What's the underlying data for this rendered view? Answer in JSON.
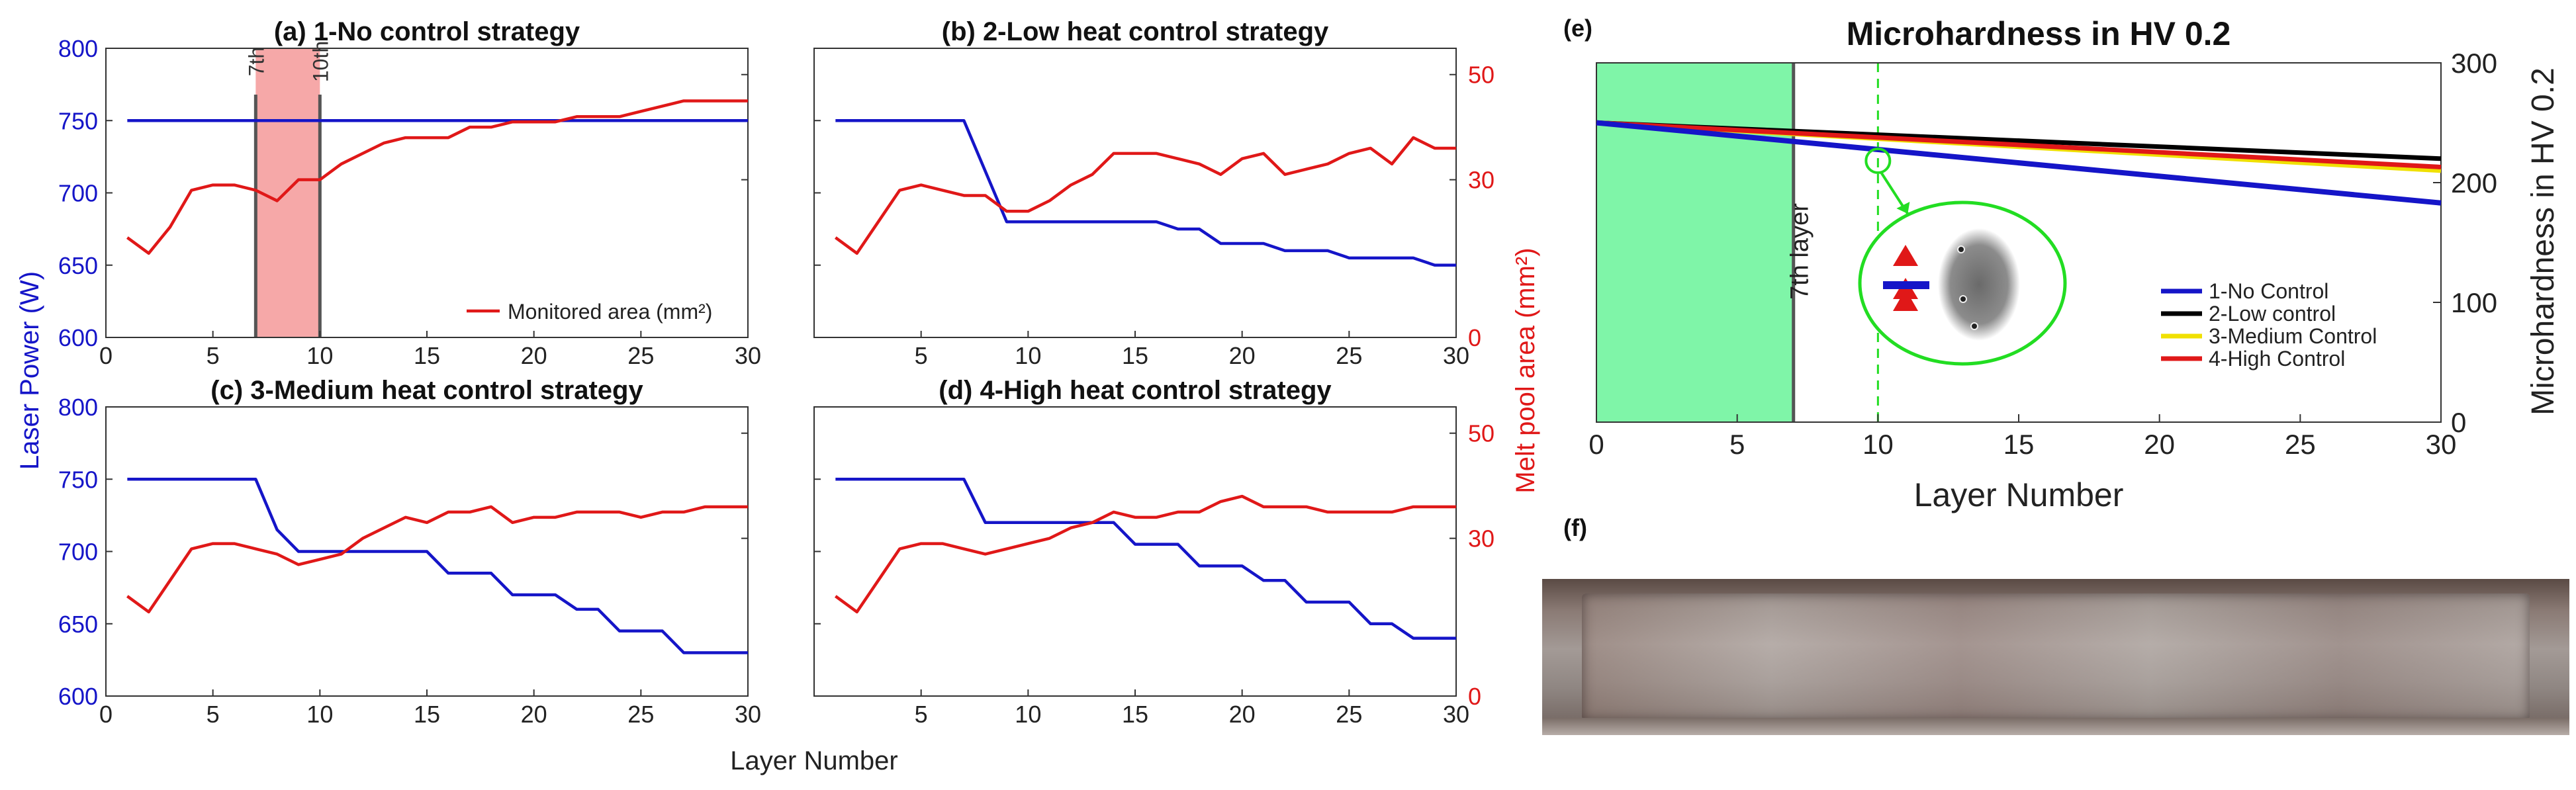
{
  "colors": {
    "power": "#1515c8",
    "area": "#e01818",
    "low": "#000000",
    "medium": "#f0e000",
    "zone": "#7ff5a8",
    "circle": "#22dd22"
  },
  "left_axes": {
    "ylabel_left": "Laser Power (W)",
    "ylabel_right": "Melt pool area (mm²)",
    "xlabel": "Layer Number",
    "y_ticks": [
      "600",
      "650",
      "700",
      "750",
      "800"
    ],
    "y2_ticks": [
      "0",
      "30",
      "50"
    ],
    "x_ticks": [
      "0",
      "5",
      "10",
      "15",
      "20",
      "25",
      "30"
    ]
  },
  "chart_data": [
    {
      "type": "line",
      "panel": "a",
      "title": "(a) 1-No control strategy",
      "xlim": [
        0,
        30
      ],
      "ylim": [
        600,
        800
      ],
      "y2lim": [
        0,
        55
      ],
      "legend": "Monitored area (mm²)",
      "annotations": [
        "7th",
        "10th"
      ],
      "highlight_x": [
        7,
        10
      ],
      "series": [
        {
          "axis": "left",
          "x": [
            1,
            30
          ],
          "values": [
            750,
            750
          ]
        },
        {
          "axis": "right",
          "x": [
            1,
            2,
            3,
            4,
            5,
            6,
            7,
            8,
            9,
            10,
            11,
            12,
            13,
            14,
            15,
            16,
            17,
            18,
            19,
            20,
            21,
            22,
            23,
            24,
            25,
            26,
            27,
            28,
            29,
            30
          ],
          "values": [
            19,
            16,
            21,
            28,
            29,
            29,
            28,
            26,
            30,
            30,
            33,
            35,
            37,
            38,
            38,
            38,
            40,
            40,
            41,
            41,
            41,
            42,
            42,
            42,
            43,
            44,
            45,
            45,
            45,
            45
          ]
        }
      ]
    },
    {
      "type": "line",
      "panel": "b",
      "title": "(b) 2-Low heat control strategy",
      "xlim": [
        0,
        30
      ],
      "ylim": [
        600,
        800
      ],
      "y2lim": [
        0,
        55
      ],
      "series": [
        {
          "axis": "left",
          "x": [
            1,
            7,
            8,
            9,
            10,
            11,
            12,
            13,
            14,
            15,
            16,
            17,
            18,
            19,
            20,
            21,
            22,
            23,
            24,
            25,
            26,
            27,
            28,
            29,
            30
          ],
          "values": [
            750,
            750,
            715,
            680,
            680,
            680,
            680,
            680,
            680,
            680,
            680,
            675,
            675,
            665,
            665,
            665,
            660,
            660,
            660,
            655,
            655,
            655,
            655,
            650,
            650
          ]
        },
        {
          "axis": "right",
          "x": [
            1,
            2,
            3,
            4,
            5,
            6,
            7,
            8,
            9,
            10,
            11,
            12,
            13,
            14,
            15,
            16,
            17,
            18,
            19,
            20,
            21,
            22,
            23,
            24,
            25,
            26,
            27,
            28,
            29,
            30
          ],
          "values": [
            19,
            16,
            22,
            28,
            29,
            28,
            27,
            27,
            24,
            24,
            26,
            29,
            31,
            35,
            35,
            35,
            34,
            33,
            31,
            34,
            35,
            31,
            32,
            33,
            35,
            36,
            33,
            38,
            36,
            36
          ]
        }
      ]
    },
    {
      "type": "line",
      "panel": "c",
      "title": "(c) 3-Medium heat control strategy",
      "xlim": [
        0,
        30
      ],
      "ylim": [
        600,
        800
      ],
      "y2lim": [
        0,
        55
      ],
      "series": [
        {
          "axis": "left",
          "x": [
            1,
            7,
            8,
            9,
            10,
            11,
            12,
            13,
            14,
            15,
            16,
            17,
            18,
            19,
            20,
            21,
            22,
            23,
            24,
            25,
            26,
            27,
            28,
            29,
            30
          ],
          "values": [
            750,
            750,
            715,
            700,
            700,
            700,
            700,
            700,
            700,
            700,
            685,
            685,
            685,
            670,
            670,
            670,
            660,
            660,
            645,
            645,
            645,
            630,
            630,
            630,
            630
          ]
        },
        {
          "axis": "right",
          "x": [
            1,
            2,
            3,
            4,
            5,
            6,
            7,
            8,
            9,
            10,
            11,
            12,
            13,
            14,
            15,
            16,
            17,
            18,
            19,
            20,
            21,
            22,
            23,
            24,
            25,
            26,
            27,
            28,
            29,
            30
          ],
          "values": [
            19,
            16,
            22,
            28,
            29,
            29,
            28,
            27,
            25,
            26,
            27,
            30,
            32,
            34,
            33,
            35,
            35,
            36,
            33,
            34,
            34,
            35,
            35,
            35,
            34,
            35,
            35,
            36,
            36,
            36
          ]
        }
      ]
    },
    {
      "type": "line",
      "panel": "d",
      "title": "(d) 4-High heat control strategy",
      "xlim": [
        0,
        30
      ],
      "ylim": [
        600,
        800
      ],
      "y2lim": [
        0,
        55
      ],
      "series": [
        {
          "axis": "left",
          "x": [
            1,
            7,
            8,
            9,
            10,
            11,
            12,
            13,
            14,
            15,
            16,
            17,
            18,
            19,
            20,
            21,
            22,
            23,
            24,
            25,
            26,
            27,
            28,
            29,
            30
          ],
          "values": [
            750,
            750,
            720,
            720,
            720,
            720,
            720,
            720,
            720,
            705,
            705,
            705,
            690,
            690,
            690,
            680,
            680,
            665,
            665,
            665,
            650,
            650,
            640,
            640,
            640
          ]
        },
        {
          "axis": "right",
          "x": [
            1,
            2,
            3,
            4,
            5,
            6,
            7,
            8,
            9,
            10,
            11,
            12,
            13,
            14,
            15,
            16,
            17,
            18,
            19,
            20,
            21,
            22,
            23,
            24,
            25,
            26,
            27,
            28,
            29,
            30
          ],
          "values": [
            19,
            16,
            22,
            28,
            29,
            29,
            28,
            27,
            28,
            29,
            30,
            32,
            33,
            35,
            34,
            34,
            35,
            35,
            37,
            38,
            36,
            36,
            36,
            35,
            35,
            35,
            35,
            36,
            36,
            36
          ]
        }
      ]
    },
    {
      "type": "line",
      "panel": "e",
      "title": "Microhardness in HV 0.2",
      "label": "(e)",
      "xlabel": "Layer Number",
      "ylabel": "Microhardness in HV 0.2",
      "xlim": [
        0,
        30
      ],
      "ylim": [
        0,
        300
      ],
      "x_ticks": [
        "0",
        "5",
        "10",
        "15",
        "20",
        "25",
        "30"
      ],
      "y_ticks": [
        "0",
        "100",
        "200",
        "300"
      ],
      "annotation": "7th layer",
      "shaded_x": [
        0,
        7
      ],
      "dashed_x": 10,
      "series": [
        {
          "name": "1-No Control",
          "x": [
            0,
            30
          ],
          "values": [
            250,
            183
          ]
        },
        {
          "name": "2-Low control",
          "x": [
            0,
            30
          ],
          "values": [
            250,
            220
          ]
        },
        {
          "name": "3-Medium Control",
          "x": [
            0,
            30
          ],
          "values": [
            250,
            210
          ]
        },
        {
          "name": "4-High Control",
          "x": [
            0,
            30
          ],
          "values": [
            250,
            213
          ]
        }
      ]
    }
  ],
  "photo": {
    "label": "(f)"
  }
}
